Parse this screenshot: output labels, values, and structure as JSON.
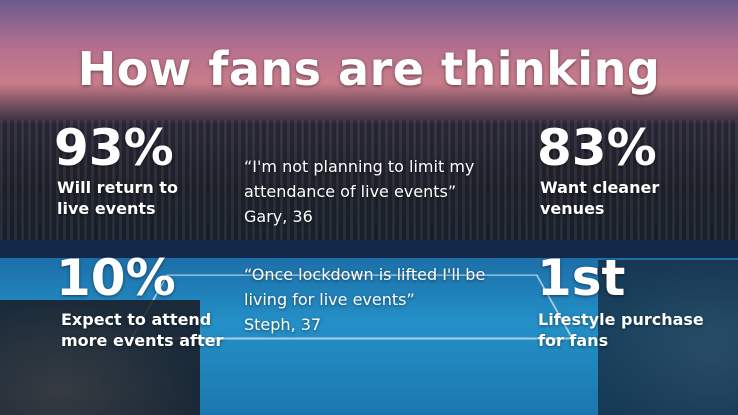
{
  "title": "How fans are thinking",
  "stats": [
    {
      "value": "93%",
      "label": "Will return to live events"
    },
    {
      "value": "83%",
      "label": "Want cleaner venues"
    },
    {
      "value": "10%",
      "label": "Expect to attend more events after"
    },
    {
      "value": "1st",
      "label": "Lifestyle purchase for fans"
    }
  ],
  "quotes": [
    {
      "text": "“I'm not planning to limit my attendance of live events”",
      "author": "Gary, 36"
    },
    {
      "text": "“Once lockdown is lifted I'll be living for live events”",
      "author": "Steph, 37"
    }
  ]
}
